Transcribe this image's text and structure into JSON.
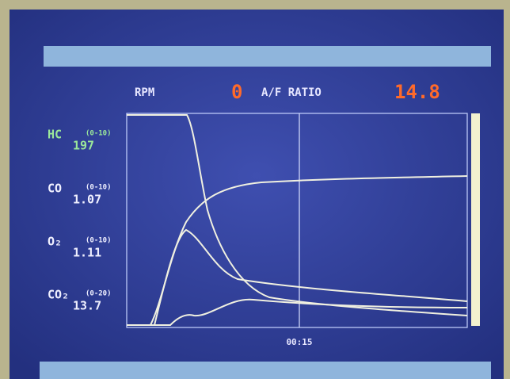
{
  "header": {
    "rpm_label": "RPM",
    "rpm_value": "0",
    "af_label": "A/F RATIO",
    "af_value": "14.8"
  },
  "readings": [
    {
      "name": "HC",
      "range": "(0-10)",
      "value": "197"
    },
    {
      "name": "CO",
      "range": "(0-10)",
      "value": "1.07"
    },
    {
      "name": "O₂",
      "range": "(0-10)",
      "value": "1.11"
    },
    {
      "name": "CO₂",
      "range": "(0-20)",
      "value": "13.7"
    }
  ],
  "cursor_time": "00:15"
}
